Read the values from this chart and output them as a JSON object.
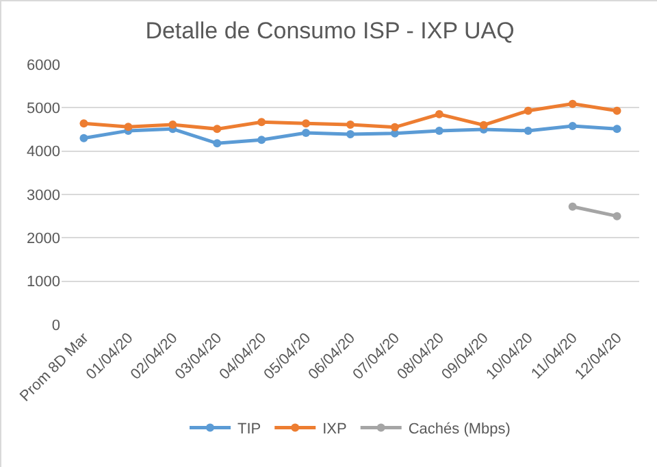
{
  "chart_data": {
    "type": "line",
    "title": "Detalle de Consumo ISP - IXP UAQ",
    "categories": [
      "Prom 8D Mar",
      "01/04/20",
      "02/04/20",
      "03/04/20",
      "04/04/20",
      "05/04/20",
      "06/04/20",
      "07/04/20",
      "08/04/20",
      "09/04/20",
      "10/04/20",
      "11/04/20",
      "12/04/20"
    ],
    "series": [
      {
        "name": "TIP",
        "color": "#5b9bd5",
        "values": [
          4300,
          4470,
          4510,
          4180,
          4260,
          4420,
          4390,
          4410,
          4470,
          4500,
          4470,
          4580,
          4510
        ]
      },
      {
        "name": "IXP",
        "color": "#ed7d31",
        "values": [
          4640,
          4560,
          4610,
          4510,
          4670,
          4640,
          4610,
          4550,
          4850,
          4600,
          4930,
          5090,
          4930
        ]
      },
      {
        "name": "Cachés (Mbps)",
        "color": "#a5a5a5",
        "values": [
          null,
          null,
          null,
          null,
          null,
          null,
          null,
          null,
          null,
          null,
          null,
          2720,
          2500
        ]
      }
    ],
    "ylim": [
      0,
      6000
    ],
    "yticks": [
      0,
      1000,
      2000,
      3000,
      4000,
      5000,
      6000
    ],
    "grid": "y",
    "legend": "bottom",
    "marker": "circle",
    "line_style": "solid"
  }
}
